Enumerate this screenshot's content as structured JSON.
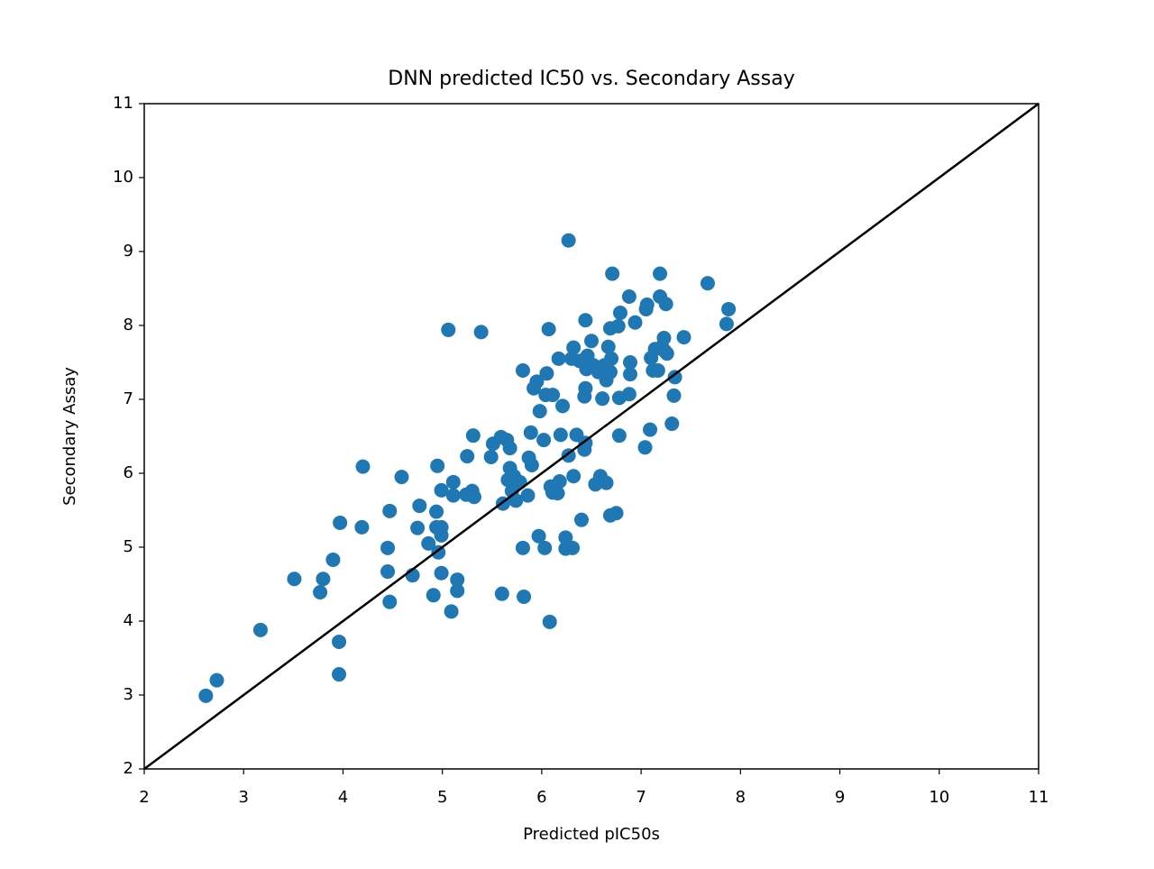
{
  "chart_data": {
    "type": "scatter",
    "title": "DNN predicted IC50 vs. Secondary Assay",
    "x_label": "Predicted pIC50s",
    "y_label": "Secondary Assay",
    "color": "#1f77b4",
    "xlim": [
      2,
      11
    ],
    "ylim": [
      2,
      11
    ],
    "xticks": [
      2,
      3,
      4,
      5,
      6,
      7,
      8,
      9,
      10,
      11
    ],
    "yticks": [
      2,
      3,
      4,
      5,
      6,
      7,
      8,
      9,
      10,
      11
    ],
    "reference_line": {
      "x": [
        2,
        11
      ],
      "y": [
        2,
        11
      ],
      "color": "#000000"
    },
    "x": [
      2.62,
      2.73,
      3.17,
      3.96,
      3.96,
      3.51,
      3.77,
      3.8,
      3.9,
      3.97,
      4.19,
      4.2,
      4.47,
      4.45,
      4.45,
      4.47,
      4.59,
      4.7,
      4.77,
      4.75,
      4.86,
      4.94,
      4.95,
      4.94,
      4.96,
      4.99,
      4.99,
      4.91,
      4.99,
      4.99,
      5.06,
      5.09,
      5.11,
      5.11,
      5.15,
      5.15,
      5.24,
      5.25,
      5.3,
      5.31,
      5.32,
      5.39,
      5.49,
      5.51,
      5.59,
      5.6,
      5.61,
      5.65,
      5.66,
      5.68,
      5.68,
      5.7,
      5.72,
      5.74,
      5.78,
      5.81,
      5.81,
      5.82,
      5.86,
      5.87,
      5.89,
      5.9,
      5.92,
      5.95,
      5.97,
      5.98,
      6.02,
      6.03,
      6.05,
      6.07,
      6.08,
      6.04,
      6.11,
      6.09,
      6.11,
      6.16,
      6.17,
      6.18,
      6.19,
      6.24,
      6.24,
      6.21,
      6.27,
      6.3,
      6.31,
      6.27,
      6.32,
      6.32,
      6.35,
      6.38,
      6.4,
      6.43,
      6.44,
      6.43,
      6.44,
      6.44,
      6.45,
      6.46,
      6.5,
      6.52,
      6.54,
      6.57,
      6.59,
      6.61,
      6.63,
      6.65,
      6.65,
      6.67,
      6.69,
      6.69,
      6.71,
      6.69,
      6.7,
      6.75,
      6.77,
      6.78,
      6.79,
      6.78,
      6.88,
      6.88,
      6.89,
      6.89,
      6.94,
      7.04,
      7.05,
      7.06,
      7.09,
      7.1,
      7.12,
      7.14,
      7.17,
      7.19,
      7.19,
      7.21,
      7.23,
      7.24,
      7.25,
      7.26,
      7.31,
      7.33,
      7.34,
      7.43,
      7.67,
      7.88,
      7.86
    ],
    "values": [
      2.99,
      3.2,
      3.88,
      3.72,
      3.28,
      4.57,
      4.39,
      4.57,
      4.83,
      5.33,
      5.27,
      6.09,
      5.49,
      4.99,
      4.67,
      4.26,
      5.95,
      4.62,
      5.56,
      5.26,
      5.05,
      5.27,
      6.1,
      5.48,
      4.93,
      5.16,
      5.27,
      4.35,
      4.65,
      5.77,
      7.94,
      4.13,
      5.88,
      5.7,
      4.56,
      4.41,
      5.71,
      6.23,
      5.76,
      6.51,
      5.68,
      7.91,
      6.22,
      6.4,
      6.49,
      4.37,
      5.59,
      6.45,
      5.91,
      6.07,
      6.34,
      5.76,
      5.96,
      5.63,
      5.88,
      7.39,
      4.99,
      4.33,
      5.7,
      6.21,
      6.55,
      6.11,
      7.15,
      7.24,
      5.15,
      6.84,
      6.45,
      4.99,
      7.35,
      7.95,
      3.99,
      7.06,
      7.06,
      5.82,
      5.74,
      5.73,
      7.55,
      5.89,
      6.52,
      4.98,
      5.13,
      6.91,
      9.15,
      7.55,
      4.99,
      6.24,
      7.7,
      5.96,
      6.52,
      7.52,
      5.37,
      7.04,
      7.15,
      6.32,
      6.41,
      8.07,
      7.41,
      7.59,
      7.79,
      7.46,
      5.85,
      7.37,
      5.96,
      7.01,
      7.46,
      5.87,
      7.26,
      7.71,
      7.37,
      5.43,
      8.7,
      7.96,
      7.55,
      5.46,
      7.99,
      6.51,
      8.17,
      7.02,
      8.39,
      7.07,
      7.5,
      7.34,
      8.04,
      6.35,
      8.22,
      8.28,
      6.59,
      7.56,
      7.39,
      7.68,
      7.39,
      8.7,
      8.39,
      7.71,
      7.83,
      7.65,
      8.29,
      7.62,
      6.67,
      7.05,
      7.3,
      7.84,
      8.57,
      8.22,
      8.02
    ]
  }
}
